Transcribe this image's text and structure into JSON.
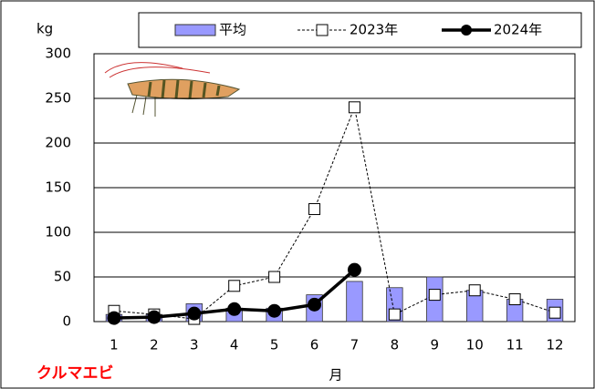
{
  "chart_data": {
    "type": "bar",
    "y_label": "kg",
    "x_label": "月",
    "annotation": "クルマエビ",
    "categories": [
      "1",
      "2",
      "3",
      "4",
      "5",
      "6",
      "7",
      "8",
      "9",
      "10",
      "11",
      "12"
    ],
    "series": [
      {
        "name": "平均",
        "type": "bar",
        "color": "#9999ff",
        "values": [
          8,
          8,
          20,
          15,
          15,
          30,
          45,
          38,
          50,
          35,
          25,
          25
        ]
      },
      {
        "name": "2023年",
        "type": "line",
        "marker": "square",
        "dashed": true,
        "color": "#000000",
        "values": [
          12,
          8,
          3,
          40,
          50,
          126,
          240,
          8,
          30,
          35,
          25,
          10
        ]
      },
      {
        "name": "2024年",
        "type": "line",
        "marker": "circle",
        "dashed": false,
        "color": "#000000",
        "values": [
          4,
          5,
          9,
          14,
          12,
          19,
          58,
          null,
          null,
          null,
          null,
          null
        ]
      }
    ],
    "ylim": [
      0,
      300
    ],
    "yticks": [
      0,
      50,
      100,
      150,
      200,
      250,
      300
    ],
    "grid": true
  }
}
